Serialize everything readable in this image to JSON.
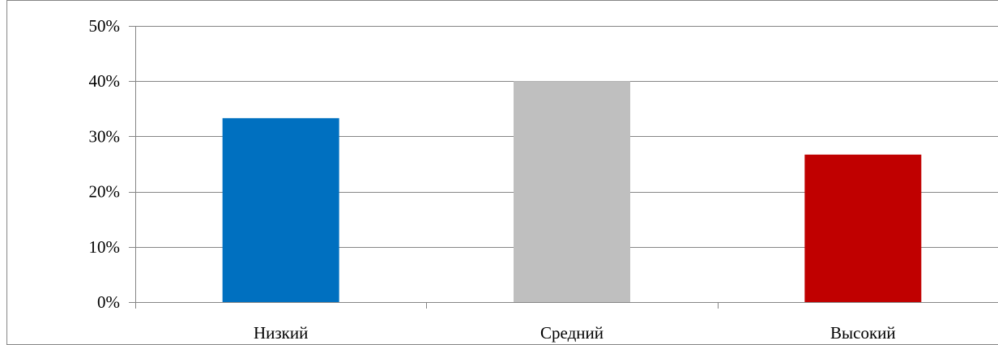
{
  "chart_data": {
    "type": "bar",
    "categories": [
      "Низкий",
      "Средний",
      "Высокий"
    ],
    "values": [
      33.3,
      40,
      26.7
    ],
    "colors": [
      "#0070C0",
      "#BFBFBF",
      "#C00000"
    ],
    "y_ticks": [
      "0%",
      "10%",
      "20%",
      "30%",
      "40%",
      "50%"
    ],
    "ylim": [
      0,
      50
    ],
    "y_unit": "%",
    "grid": true,
    "legend": "none",
    "gridline_color": "#868686",
    "axis_color": "#868686"
  }
}
